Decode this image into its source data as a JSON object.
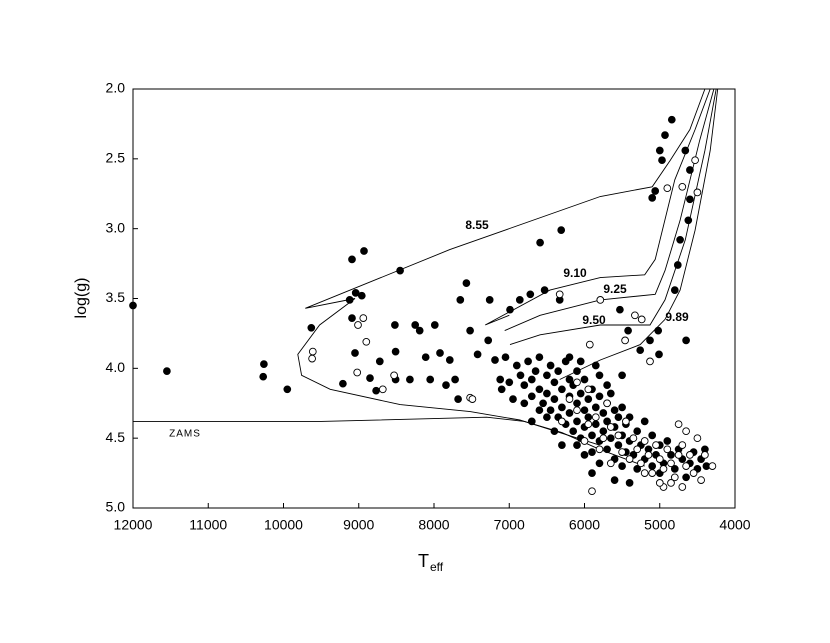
{
  "chart_data": {
    "type": "scatter",
    "xlabel": "T",
    "xlabel_subscript": "eff",
    "ylabel": "log(g)",
    "xlim": [
      4000,
      12000
    ],
    "x_reversed": true,
    "ylim": [
      2.0,
      5.0
    ],
    "y_reversed": true,
    "xticks": [
      12000,
      11000,
      10000,
      9000,
      8000,
      7000,
      6000,
      5000,
      4000
    ],
    "yticks": [
      {
        "value": 2.0,
        "label": "2.0"
      },
      2.5,
      {
        "value": 3.0,
        "label": "3.0"
      },
      3.5,
      {
        "value": 4.0,
        "label": "4.0"
      },
      4.5,
      {
        "value": 5.0,
        "label": "5.0"
      }
    ],
    "series": [
      {
        "color": "#000000",
        "fill": "#000000",
        "x": [
          12000,
          11550,
          10260,
          10270,
          9950,
          9630,
          9120,
          9090,
          8930,
          9040,
          8960,
          9210,
          9050,
          8770,
          9090,
          8520,
          8450,
          8720,
          8510,
          8320,
          8250,
          8190,
          8110,
          8050,
          7990,
          7920,
          7840,
          7790,
          7720,
          7680,
          7520,
          7650,
          7570,
          7420,
          7280,
          7260,
          7190,
          7120,
          6990,
          6860,
          6720,
          6590,
          6310,
          6530,
          6330,
          5530,
          5420,
          5260,
          5130,
          5000,
          4970,
          4930,
          4660,
          4840,
          4600,
          4600,
          4620,
          4730,
          4760,
          4800,
          5020,
          4650,
          5010,
          8510,
          8850,
          5100,
          5060,
          6900,
          6850,
          6800,
          6750,
          6700,
          6700,
          6650,
          6600,
          6600,
          6550,
          6500,
          6500,
          6450,
          6450,
          6400,
          6400,
          6350,
          6350,
          6300,
          6300,
          6250,
          6250,
          6200,
          6200,
          6200,
          6150,
          6150,
          6100,
          6100,
          6100,
          6050,
          6050,
          6000,
          6000,
          6000,
          5950,
          5950,
          5900,
          5900,
          5900,
          5850,
          5850,
          5800,
          5800,
          5800,
          5750,
          5750,
          5700,
          5700,
          5700,
          5650,
          5650,
          5600,
          5600,
          5600,
          5550,
          5550,
          5500,
          5500,
          5500,
          5450,
          5450,
          5400,
          5400,
          5350,
          5300,
          5300,
          5250,
          5200,
          5200,
          5150,
          5100,
          5100,
          5050,
          5000,
          5000,
          4950,
          4900,
          4850,
          4800,
          4750,
          4700,
          4650,
          4600,
          4550,
          4500,
          4450,
          4400,
          4380,
          6000,
          6100,
          5800,
          6400,
          6300,
          5600,
          5900,
          5400,
          6500,
          6600,
          6800,
          7000,
          7100,
          7050,
          6950,
          6700,
          5700,
          6050,
          5850,
          6200,
          5500
        ],
        "values": [
          3.55,
          4.02,
          3.97,
          4.06,
          4.15,
          3.71,
          3.51,
          3.22,
          3.16,
          3.46,
          3.48,
          4.11,
          3.89,
          4.16,
          3.64,
          3.69,
          3.3,
          3.95,
          3.88,
          4.08,
          3.69,
          3.73,
          3.92,
          4.08,
          3.69,
          3.89,
          4.12,
          3.94,
          4.08,
          4.22,
          3.73,
          3.51,
          3.39,
          3.9,
          3.8,
          3.51,
          3.94,
          4.08,
          3.58,
          3.51,
          3.47,
          3.1,
          3.01,
          3.44,
          3.51,
          3.58,
          3.73,
          3.87,
          3.8,
          2.44,
          2.51,
          2.33,
          2.44,
          2.22,
          2.58,
          2.79,
          2.94,
          3.08,
          3.26,
          3.44,
          3.73,
          3.8,
          3.9,
          4.08,
          4.07,
          2.78,
          2.73,
          3.98,
          4.05,
          4.12,
          3.95,
          4.08,
          4.2,
          4.02,
          4.15,
          3.92,
          4.25,
          4.05,
          4.18,
          4.3,
          3.98,
          4.1,
          4.22,
          4.35,
          4.02,
          4.15,
          4.28,
          4.4,
          3.95,
          4.08,
          4.2,
          4.32,
          4.45,
          4.12,
          4.25,
          4.02,
          4.38,
          4.18,
          4.5,
          4.3,
          4.08,
          4.42,
          4.22,
          4.35,
          4.15,
          4.48,
          4.6,
          4.28,
          4.4,
          4.05,
          4.2,
          4.52,
          4.32,
          4.45,
          4.25,
          4.38,
          4.58,
          4.18,
          4.5,
          4.3,
          4.42,
          4.65,
          4.35,
          4.55,
          4.28,
          4.48,
          4.7,
          4.4,
          4.6,
          4.52,
          4.35,
          4.62,
          4.45,
          4.72,
          4.55,
          4.38,
          4.65,
          4.58,
          4.48,
          4.7,
          4.62,
          4.55,
          4.75,
          4.68,
          4.52,
          4.62,
          4.72,
          4.58,
          4.65,
          4.78,
          4.68,
          4.6,
          4.72,
          4.65,
          4.58,
          4.7,
          4.62,
          4.55,
          4.68,
          4.45,
          4.55,
          4.8,
          4.75,
          4.82,
          4.35,
          4.3,
          4.25,
          4.1,
          4.15,
          3.92,
          4.22,
          4.38,
          4.12,
          3.95,
          3.98,
          3.92,
          4.05
        ]
      },
      {
        "color": "#000000",
        "fill": "#ffffff",
        "x": [
          9610,
          9620,
          9010,
          8940,
          8900,
          9020,
          8680,
          8530,
          7520,
          7490,
          6330,
          5790,
          5330,
          5240,
          5460,
          4900,
          4700,
          4530,
          4500,
          5130,
          5930,
          6200,
          6100,
          5950,
          5850,
          5750,
          5650,
          5550,
          5500,
          5450,
          5400,
          5350,
          5300,
          5250,
          5200,
          5150,
          5100,
          5050,
          5000,
          4950,
          4900,
          4850,
          4800,
          4750,
          4700,
          4650,
          4600,
          4550,
          4500,
          4450,
          4400,
          4300,
          4750,
          4650,
          6000,
          6100,
          5800,
          5650,
          5900,
          4950,
          5000,
          5200,
          5700,
          6300,
          5950,
          4850,
          4700
        ],
        "values": [
          3.88,
          3.93,
          3.69,
          3.64,
          3.81,
          4.03,
          4.15,
          4.05,
          4.21,
          4.22,
          3.47,
          3.51,
          3.62,
          3.65,
          3.8,
          2.71,
          2.7,
          2.51,
          2.74,
          3.95,
          3.83,
          4.22,
          4.3,
          4.4,
          4.35,
          4.5,
          4.42,
          4.48,
          4.6,
          4.38,
          4.65,
          4.5,
          4.58,
          4.68,
          4.52,
          4.62,
          4.75,
          4.55,
          4.65,
          4.72,
          4.58,
          4.68,
          4.78,
          4.62,
          4.55,
          4.7,
          4.62,
          4.75,
          4.5,
          4.8,
          4.62,
          4.7,
          4.4,
          4.45,
          4.52,
          4.1,
          4.58,
          4.68,
          4.88,
          4.85,
          4.82,
          4.75,
          4.25,
          4.38,
          4.15,
          4.82,
          4.85
        ]
      }
    ],
    "lines": [
      {
        "label": "8.55",
        "x": [
          4400,
          4600,
          4860,
          5100,
          5790,
          7790,
          9710,
          9050,
          9520,
          9810,
          9760,
          9380,
          8450,
          7520,
          6860,
          6330,
          5800
        ],
        "values": [
          2.0,
          2.29,
          2.51,
          2.7,
          2.77,
          3.15,
          3.57,
          3.5,
          3.69,
          3.9,
          4.05,
          4.15,
          4.26,
          4.31,
          4.37,
          4.46,
          4.55
        ]
      },
      {
        "label": "9.10",
        "x": [
          4330,
          4530,
          4800,
          5060,
          5200,
          5790,
          6460,
          7320,
          7000
        ],
        "values": [
          2.0,
          2.29,
          2.65,
          3.22,
          3.33,
          3.35,
          3.44,
          3.69,
          3.62
        ]
      },
      {
        "label": "9.25",
        "x": [
          4280,
          4470,
          4730,
          4930,
          5060,
          5790,
          6590,
          7060
        ],
        "values": [
          2.0,
          2.37,
          2.94,
          3.3,
          3.47,
          3.51,
          3.62,
          3.73
        ]
      },
      {
        "label": "9.50",
        "x": [
          4250,
          4400,
          4660,
          4930,
          5130,
          5790,
          6590,
          6990
        ],
        "values": [
          2.0,
          2.44,
          3.08,
          3.51,
          3.69,
          3.69,
          3.76,
          3.83
        ]
      },
      {
        "label": "9.89",
        "x": [
          4230,
          4330,
          4530,
          4730,
          4930,
          5260,
          5790,
          6330
        ],
        "values": [
          2.0,
          2.44,
          3.01,
          3.44,
          3.65,
          3.83,
          3.94,
          4.08
        ]
      },
      {
        "label": "ZAMS",
        "x": [
          12000,
          9500,
          8000,
          7300,
          6800,
          6300,
          5800,
          5200
        ],
        "values": [
          4.38,
          4.38,
          4.36,
          4.35,
          4.38,
          4.46,
          4.58,
          4.7
        ]
      }
    ]
  }
}
